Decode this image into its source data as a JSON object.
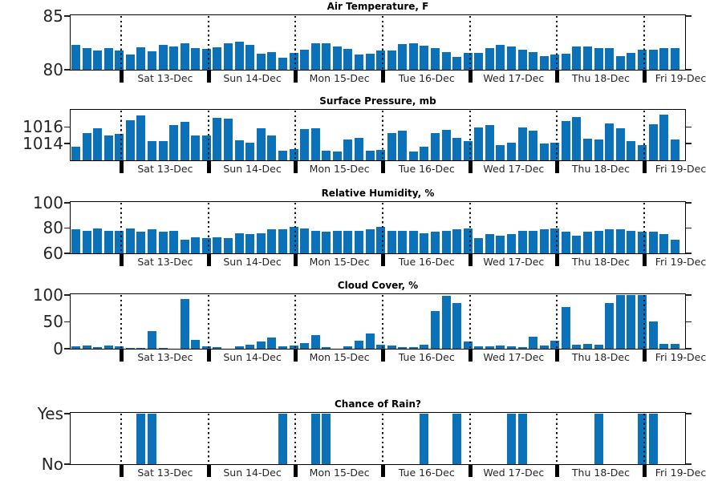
{
  "figure": {
    "bar_color": "#0b72b9",
    "axis_color": "#000000",
    "tick_label_color": "#262626",
    "background": "#ffffff"
  },
  "x_axis": {
    "day_labels": [
      "Sat 13-Dec",
      "Sun 14-Dec",
      "Mon 15-Dec",
      "Tue 16-Dec",
      "Wed 17-Dec",
      "Thu 18-Dec",
      "Fri 19-Dec"
    ],
    "bars_per_day": 8,
    "bars_before_first_day_boundary": 5,
    "total_bars": 56
  },
  "chart_data": [
    {
      "type": "bar",
      "title": "Air Temperature, F",
      "ylim": [
        80,
        85
      ],
      "yticks": [
        {
          "value": 85,
          "label": "85"
        },
        {
          "value": 80,
          "label": "80"
        }
      ],
      "values": [
        82.35,
        82.05,
        81.8,
        82.05,
        81.8,
        81.45,
        82.1,
        81.7,
        82.3,
        82.2,
        82.45,
        82.0,
        81.95,
        82.1,
        82.5,
        82.6,
        82.3,
        81.5,
        81.65,
        81.1,
        81.6,
        81.9,
        82.5,
        82.5,
        82.2,
        81.95,
        81.45,
        81.5,
        81.8,
        81.8,
        82.4,
        82.45,
        82.25,
        82.0,
        81.65,
        81.2,
        81.6,
        81.6,
        82.0,
        82.3,
        82.2,
        81.85,
        81.65,
        81.25,
        81.4,
        81.5,
        82.15,
        82.2,
        82.05,
        82.0,
        81.3,
        81.6,
        81.9,
        81.9,
        82.0,
        82.0
      ]
    },
    {
      "type": "bar",
      "title": "Surface Pressure, mb",
      "ylim": [
        1012,
        1018
      ],
      "yticks": [
        {
          "value": 1016,
          "label": "1016"
        },
        {
          "value": 1014,
          "label": "1014"
        }
      ],
      "values": [
        1013.6,
        1015.3,
        1015.9,
        1015.0,
        1015.2,
        1016.8,
        1017.4,
        1014.3,
        1014.3,
        1016.3,
        1016.6,
        1015.0,
        1015.0,
        1017.1,
        1017.0,
        1014.4,
        1014.1,
        1015.9,
        1015.0,
        1013.2,
        1013.4,
        1015.8,
        1015.9,
        1013.2,
        1013.1,
        1014.5,
        1014.7,
        1013.2,
        1013.3,
        1015.3,
        1015.6,
        1013.1,
        1013.6,
        1015.3,
        1015.7,
        1014.7,
        1014.3,
        1016.0,
        1016.3,
        1013.8,
        1014.1,
        1016.0,
        1015.6,
        1014.0,
        1014.1,
        1016.7,
        1017.2,
        1014.6,
        1014.5,
        1016.5,
        1015.9,
        1014.3,
        1013.8,
        1016.4,
        1017.5,
        1014.5
      ]
    },
    {
      "type": "bar",
      "title": "Relative Humidity, %",
      "ylim": [
        60,
        100
      ],
      "yticks": [
        {
          "value": 100,
          "label": "100"
        },
        {
          "value": 80,
          "label": "80"
        },
        {
          "value": 60,
          "label": "60"
        }
      ],
      "values": [
        79,
        78,
        80,
        78,
        78,
        80,
        77,
        79,
        77,
        78,
        71,
        73,
        72,
        73,
        72,
        76,
        75,
        76,
        79,
        79,
        81,
        80,
        78,
        77,
        78,
        78,
        78,
        79,
        81,
        78,
        78,
        78,
        76,
        77,
        78,
        79,
        80,
        72,
        75,
        74,
        75,
        78,
        78,
        79,
        80,
        77,
        74,
        77,
        78,
        79,
        79,
        78,
        77,
        77,
        75,
        71
      ]
    },
    {
      "type": "bar",
      "title": "Cloud Cover, %",
      "ylim": [
        0,
        100
      ],
      "yticks": [
        {
          "value": 100,
          "label": "100"
        },
        {
          "value": 50,
          "label": "50"
        },
        {
          "value": 0,
          "label": "0"
        }
      ],
      "values": [
        5,
        6,
        3,
        6,
        5,
        2,
        1,
        33,
        1,
        0,
        93,
        17,
        5,
        3,
        0,
        4,
        7,
        13,
        21,
        5,
        6,
        10,
        25,
        3,
        0,
        5,
        15,
        28,
        7,
        6,
        3,
        3,
        8,
        70,
        98,
        85,
        13,
        5,
        4,
        6,
        5,
        3,
        22,
        6,
        15,
        77,
        8,
        9,
        7,
        85,
        100,
        100,
        100,
        51,
        9,
        9
      ]
    },
    {
      "type": "bar",
      "title": "Chance of Rain?",
      "ylim": [
        0,
        1
      ],
      "yticks": [
        {
          "value": 1,
          "label": "Yes"
        },
        {
          "value": 0,
          "label": "No"
        }
      ],
      "values": [
        0,
        0,
        0,
        0,
        0,
        0,
        1,
        1,
        0,
        0,
        0,
        0,
        0,
        0,
        0,
        0,
        0,
        0,
        0,
        1,
        0,
        0,
        1,
        1,
        0,
        0,
        0,
        0,
        0,
        0,
        0,
        0,
        1,
        0,
        0,
        1,
        0,
        0,
        0,
        0,
        1,
        1,
        0,
        0,
        0,
        0,
        0,
        0,
        1,
        0,
        0,
        0,
        1,
        1,
        0,
        0
      ]
    }
  ]
}
